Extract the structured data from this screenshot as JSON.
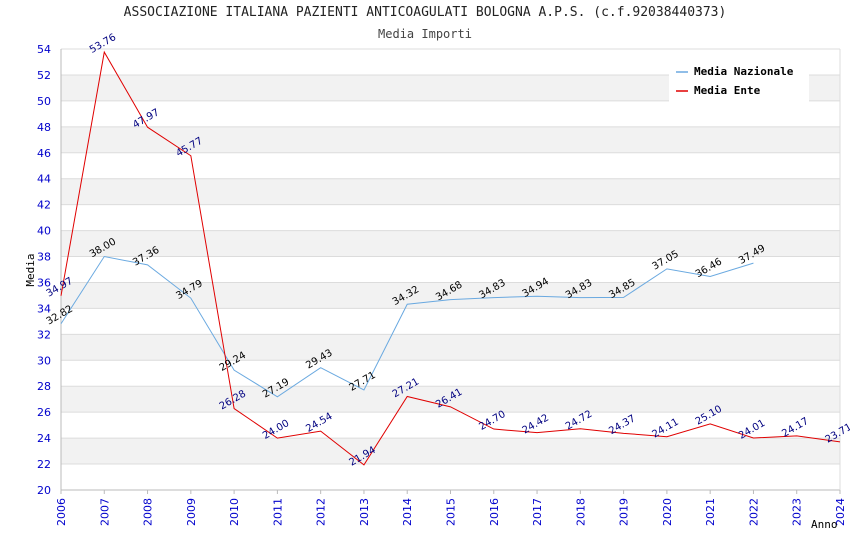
{
  "chart_data": {
    "type": "line",
    "title": "ASSOCIAZIONE ITALIANA PAZIENTI ANTICOAGULATI BOLOGNA A.P.S. (c.f.92038440373)",
    "subtitle": "Media Importi",
    "xlabel": "Anno",
    "ylabel": "Media",
    "ylim": [
      20,
      54
    ],
    "ytick_step": 2,
    "grid": true,
    "legend_position": "top-right",
    "x": [
      "2006",
      "2007",
      "2008",
      "2009",
      "2010",
      "2011",
      "2012",
      "2013",
      "2014",
      "2015",
      "2016",
      "2017",
      "2018",
      "2019",
      "2020",
      "2021",
      "2022",
      "2023",
      "2024"
    ],
    "series": [
      {
        "name": "Media Nazionale",
        "color": "#6aa9e0",
        "values": [
          32.82,
          38.0,
          37.36,
          34.79,
          29.24,
          27.19,
          29.43,
          27.71,
          34.32,
          34.68,
          34.83,
          34.94,
          34.83,
          34.85,
          37.05,
          36.46,
          37.49,
          null,
          null
        ],
        "labels": [
          "32.82",
          "38.00",
          "37.36",
          "34.79",
          "29.24",
          "27.19",
          "29.43",
          "27.71",
          "34.32",
          "34.68",
          "34.83",
          "34.94",
          "34.83",
          "34.85",
          "37.05",
          "36.46",
          "37.49",
          null,
          null
        ]
      },
      {
        "name": "Media Ente",
        "color": "#e00000",
        "values": [
          34.97,
          53.76,
          47.97,
          45.77,
          26.28,
          24.0,
          24.54,
          21.94,
          27.21,
          26.41,
          24.7,
          24.42,
          24.72,
          24.37,
          24.11,
          25.1,
          24.01,
          24.17,
          23.71
        ],
        "labels": [
          "34.97",
          "53.76",
          "47.97",
          "45.77",
          "26.28",
          "24.00",
          "24.54",
          "21.94",
          "27.21",
          "26.41",
          "24.70",
          "24.42",
          "24.72",
          "24.37",
          "24.11",
          "25.10",
          "24.01",
          "24.17",
          "23.71"
        ]
      }
    ]
  }
}
